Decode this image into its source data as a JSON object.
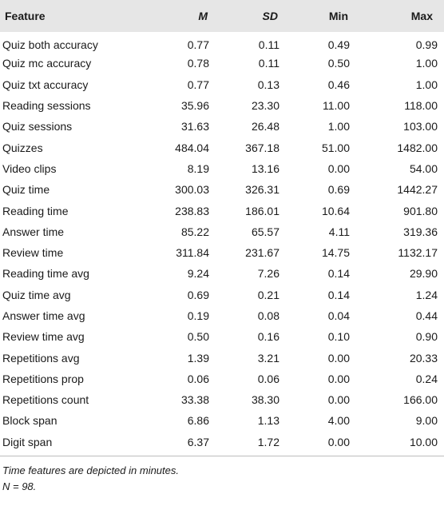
{
  "table": {
    "headers": {
      "feature": "Feature",
      "m": "M",
      "sd": "SD",
      "min": "Min",
      "max": "Max"
    },
    "rows": [
      {
        "feature": "Quiz both accuracy",
        "m": "0.77",
        "sd": "0.11",
        "min": "0.49",
        "max": "0.99"
      },
      {
        "feature": "Quiz mc accuracy",
        "m": "0.78",
        "sd": "0.11",
        "min": "0.50",
        "max": "1.00"
      },
      {
        "feature": "Quiz txt accuracy",
        "m": "0.77",
        "sd": "0.13",
        "min": "0.46",
        "max": "1.00"
      },
      {
        "feature": "Reading sessions",
        "m": "35.96",
        "sd": "23.30",
        "min": "11.00",
        "max": "118.00"
      },
      {
        "feature": "Quiz sessions",
        "m": "31.63",
        "sd": "26.48",
        "min": "1.00",
        "max": "103.00"
      },
      {
        "feature": "Quizzes",
        "m": "484.04",
        "sd": "367.18",
        "min": "51.00",
        "max": "1482.00"
      },
      {
        "feature": "Video clips",
        "m": "8.19",
        "sd": "13.16",
        "min": "0.00",
        "max": "54.00"
      },
      {
        "feature": "Quiz time",
        "m": "300.03",
        "sd": "326.31",
        "min": "0.69",
        "max": "1442.27"
      },
      {
        "feature": "Reading time",
        "m": "238.83",
        "sd": "186.01",
        "min": "10.64",
        "max": "901.80"
      },
      {
        "feature": "Answer time",
        "m": "85.22",
        "sd": "65.57",
        "min": "4.11",
        "max": "319.36"
      },
      {
        "feature": "Review time",
        "m": "311.84",
        "sd": "231.67",
        "min": "14.75",
        "max": "1132.17"
      },
      {
        "feature": "Reading time avg",
        "m": "9.24",
        "sd": "7.26",
        "min": "0.14",
        "max": "29.90"
      },
      {
        "feature": "Quiz time avg",
        "m": "0.69",
        "sd": "0.21",
        "min": "0.14",
        "max": "1.24"
      },
      {
        "feature": "Answer time avg",
        "m": "0.19",
        "sd": "0.08",
        "min": "0.04",
        "max": "0.44"
      },
      {
        "feature": "Review time avg",
        "m": "0.50",
        "sd": "0.16",
        "min": "0.10",
        "max": "0.90"
      },
      {
        "feature": "Repetitions avg",
        "m": "1.39",
        "sd": "3.21",
        "min": "0.00",
        "max": "20.33"
      },
      {
        "feature": "Repetitions prop",
        "m": "0.06",
        "sd": "0.06",
        "min": "0.00",
        "max": "0.24"
      },
      {
        "feature": "Repetitions count",
        "m": "33.38",
        "sd": "38.30",
        "min": "0.00",
        "max": "166.00"
      },
      {
        "feature": "Block span",
        "m": "6.86",
        "sd": "1.13",
        "min": "4.00",
        "max": "9.00"
      },
      {
        "feature": "Digit span",
        "m": "6.37",
        "sd": "1.72",
        "min": "0.00",
        "max": "10.00"
      }
    ]
  },
  "notes": {
    "line1": "Time features are depicted in minutes.",
    "line2": "N = 98."
  },
  "colors": {
    "header_bg": "#e6e6e6",
    "rule": "#bdbdbd",
    "text": "#1a1a1a"
  }
}
